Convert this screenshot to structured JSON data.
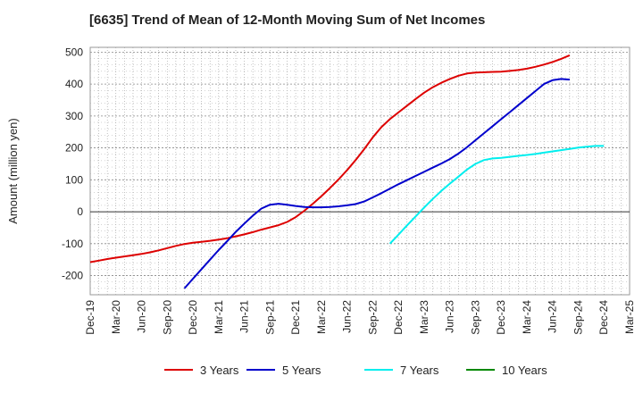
{
  "chart_data": {
    "type": "line",
    "title": "[6635]  Trend of Mean of 12-Month Moving Sum of Net Incomes",
    "ylabel": "Amount (million yen)",
    "xlabel": "",
    "ylim": [
      -260,
      515
    ],
    "yticks": [
      500,
      400,
      300,
      200,
      100,
      0,
      -100,
      -200
    ],
    "x_ticks": [
      "Dec-19",
      "Mar-20",
      "Jun-20",
      "Sep-20",
      "Dec-20",
      "Mar-21",
      "Jun-21",
      "Sep-21",
      "Dec-21",
      "Mar-22",
      "Jun-22",
      "Sep-22",
      "Dec-22",
      "Mar-23",
      "Jun-23",
      "Sep-23",
      "Dec-23",
      "Mar-24",
      "Jun-24",
      "Sep-24",
      "Dec-24",
      "Mar-25"
    ],
    "grid": true,
    "legend_position": "bottom",
    "series": [
      {
        "name": "3 Years",
        "color": "#dd0000",
        "start": "Dec-19",
        "values": [
          -158,
          -153,
          -148,
          -144,
          -140,
          -136,
          -132,
          -127,
          -121,
          -114,
          -107,
          -101,
          -97,
          -94,
          -91,
          -87,
          -83,
          -77,
          -71,
          -64,
          -56,
          -49,
          -42,
          -32,
          -17,
          3,
          25,
          49,
          74,
          101,
          130,
          162,
          196,
          233,
          265,
          290,
          311,
          332,
          353,
          373,
          390,
          404,
          416,
          426,
          433,
          436,
          437,
          438,
          439,
          441,
          444,
          448,
          454,
          461,
          469,
          479,
          490
        ]
      },
      {
        "name": "5 Years",
        "color": "#0000cc",
        "start": "Nov-20",
        "values": [
          -240,
          -210,
          -180,
          -150,
          -120,
          -92,
          -63,
          -37,
          -12,
          10,
          22,
          25,
          22,
          18,
          15,
          14,
          14,
          15,
          17,
          20,
          24,
          32,
          45,
          58,
          72,
          86,
          99,
          112,
          125,
          138,
          151,
          165,
          182,
          202,
          224,
          246,
          268,
          290,
          312,
          334,
          356,
          378,
          400,
          412,
          416,
          414
        ]
      },
      {
        "name": "7 Years",
        "color": "#00eeee",
        "start": "Nov-22",
        "values": [
          -100,
          -72,
          -43,
          -15,
          13,
          40,
          65,
          88,
          110,
          132,
          150,
          162,
          167,
          169,
          172,
          175,
          178,
          181,
          185,
          189,
          193,
          197,
          201,
          204,
          206,
          206
        ]
      },
      {
        "name": "10 Years",
        "color": "#008800",
        "start": "Dec-24",
        "values": []
      }
    ]
  }
}
